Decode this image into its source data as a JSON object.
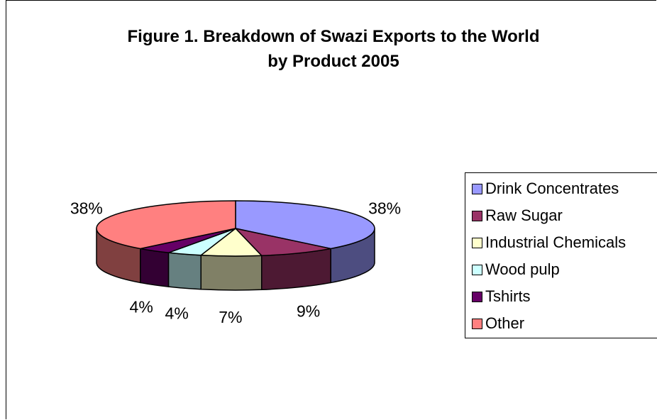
{
  "chart_data": {
    "type": "pie",
    "title": "Figure 1. Breakdown of Swazi Exports to the World",
    "subtitle": "by Product 2005",
    "slices": [
      {
        "name": "Drink Concentrates",
        "value": 38,
        "label": "38%",
        "color": "#9999ff",
        "side_color": "#4d4d80"
      },
      {
        "name": "Raw Sugar",
        "value": 9,
        "label": "9%",
        "color": "#993366",
        "side_color": "#4d1933"
      },
      {
        "name": "Industrial Chemicals",
        "value": 7,
        "label": "7%",
        "color": "#ffffcc",
        "side_color": "#808066"
      },
      {
        "name": "Wood pulp",
        "value": 4,
        "label": "4%",
        "color": "#ccffff",
        "side_color": "#668080"
      },
      {
        "name": "Tshirts",
        "value": 4,
        "label": "4%",
        "color": "#660066",
        "side_color": "#330033"
      },
      {
        "name": "Other",
        "value": 38,
        "label": "38%",
        "color": "#ff8080",
        "side_color": "#804040"
      }
    ],
    "legend_position": "right"
  }
}
